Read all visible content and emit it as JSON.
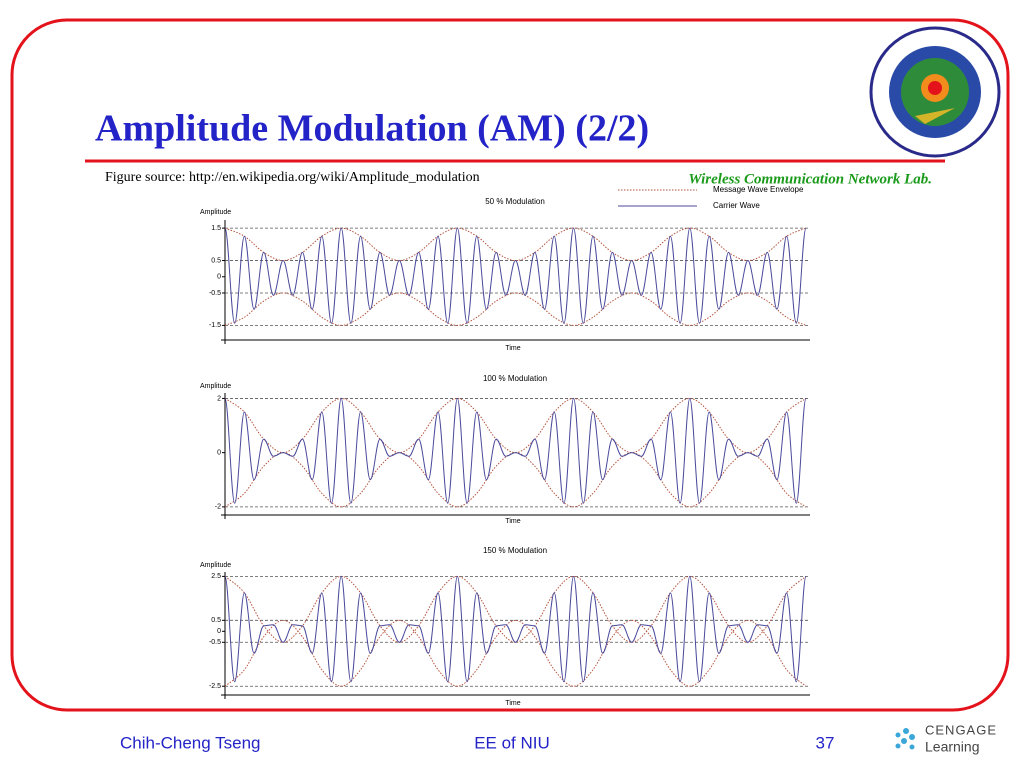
{
  "slide": {
    "title": "Amplitude Modulation (AM) (2/2)",
    "source": "Figure source: http://en.wikipedia.org/wiki/Amplitude_modulation",
    "lab": "Wireless Communication Network Lab.",
    "author": "Chih-Cheng Tseng",
    "dept": "EE of NIU",
    "page": "37",
    "brand": "CENGAGE",
    "brand_sub": "Learning"
  },
  "chart_data": [
    {
      "type": "line",
      "title": "50 % Modulation",
      "y_label": "Amplitude",
      "x_label": "Time",
      "ylim": [
        -1.95,
        1.75
      ],
      "yticks": [
        1.5,
        0.5,
        0,
        -0.5,
        -1.5
      ],
      "hlines": [
        1.5,
        0.5,
        -0.5,
        -1.5
      ],
      "legend": "top-right",
      "series": [
        {
          "name": "Message Wave Envelope",
          "color": "#b5523b",
          "values": [
            1.5,
            1.25,
            0.75,
            0.5,
            0.75,
            1.25,
            1.5,
            1.25,
            0.75,
            0.5,
            0.75,
            1.25,
            1.5,
            1.25,
            0.75,
            0.5,
            0.75,
            1.25,
            1.5,
            1.25,
            0.75,
            0.5,
            0.75,
            1.25,
            1.5,
            1.25,
            0.75,
            0.5,
            0.75,
            1.25,
            1.5
          ],
          "lower": [
            -1.5,
            -1.25,
            -0.75,
            -0.5,
            -0.75,
            -1.25,
            -1.5,
            -1.25,
            -0.75,
            -0.5,
            -0.75,
            -1.25,
            -1.5,
            -1.25,
            -0.75,
            -0.5,
            -0.75,
            -1.25,
            -1.5,
            -1.25,
            -0.75,
            -0.5,
            -0.75,
            -1.25,
            -1.5,
            -1.25,
            -0.75,
            -0.5,
            -0.75,
            -1.25,
            -1.5
          ]
        },
        {
          "name": "Carrier Wave",
          "color": "#4a4a9c",
          "values": [
            1.5,
            -1.433,
            1.25,
            -1,
            0.75,
            -0.567,
            0.5,
            -0.567,
            0.75,
            -1,
            1.25,
            -1.433,
            1.5,
            -1.433,
            1.25,
            -1,
            0.75,
            -0.567,
            0.5,
            -0.567,
            0.75,
            -1,
            1.25,
            -1.433,
            1.5,
            -1.433,
            1.25,
            -1,
            0.75,
            -0.567,
            0.5,
            -0.567,
            0.75,
            -1,
            1.25,
            -1.433,
            1.5,
            -1.433,
            1.25,
            -1,
            0.75,
            -0.567,
            0.5,
            -0.567,
            0.75,
            -1,
            1.25,
            -1.433,
            1.5,
            -1.433,
            1.25,
            -1,
            0.75,
            -0.567,
            0.5,
            -0.567,
            0.75,
            -1,
            1.25,
            -1.433,
            1.5
          ]
        }
      ]
    },
    {
      "type": "line",
      "title": "100 % Modulation",
      "y_label": "Amplitude",
      "x_label": "Time",
      "ylim": [
        -2.3,
        2.2
      ],
      "yticks": [
        2,
        0,
        -2
      ],
      "hlines": [
        2,
        -2
      ],
      "series": [
        {
          "name": "Message Wave Envelope",
          "color": "#b5523b",
          "values": [
            2,
            1.5,
            0.5,
            0,
            0.5,
            1.5,
            2,
            1.5,
            0.5,
            0,
            0.5,
            1.5,
            2,
            1.5,
            0.5,
            0,
            0.5,
            1.5,
            2,
            1.5,
            0.5,
            0,
            0.5,
            1.5,
            2,
            1.5,
            0.5,
            0,
            0.5,
            1.5,
            2
          ],
          "lower": [
            -2,
            -1.5,
            -0.5,
            0,
            -0.5,
            -1.5,
            -2,
            -1.5,
            -0.5,
            0,
            -0.5,
            -1.5,
            -2,
            -1.5,
            -0.5,
            0,
            -0.5,
            -1.5,
            -2,
            -1.5,
            -0.5,
            0,
            -0.5,
            -1.5,
            -2,
            -1.5,
            -0.5,
            0,
            -0.5,
            -1.5,
            -2
          ]
        },
        {
          "name": "Carrier Wave",
          "color": "#4a4a9c",
          "values": [
            2,
            -1.866,
            1.5,
            -1,
            0.5,
            -0.134,
            0,
            -0.134,
            0.5,
            -1,
            1.5,
            -1.866,
            2,
            -1.866,
            1.5,
            -1,
            0.5,
            -0.134,
            0,
            -0.134,
            0.5,
            -1,
            1.5,
            -1.866,
            2,
            -1.866,
            1.5,
            -1,
            0.5,
            -0.134,
            0,
            -0.134,
            0.5,
            -1,
            1.5,
            -1.866,
            2,
            -1.866,
            1.5,
            -1,
            0.5,
            -0.134,
            0,
            -0.134,
            0.5,
            -1,
            1.5,
            -1.866,
            2,
            -1.866,
            1.5,
            -1,
            0.5,
            -0.134,
            0,
            -0.134,
            0.5,
            -1,
            1.5,
            -1.866,
            2
          ]
        }
      ]
    },
    {
      "type": "line",
      "title": "150 % Modulation",
      "y_label": "Amplitude",
      "x_label": "Time",
      "ylim": [
        -2.9,
        2.7
      ],
      "yticks": [
        2.5,
        0.5,
        0,
        -0.5,
        -2.5
      ],
      "hlines": [
        2.5,
        0.5,
        -0.5,
        -2.5
      ],
      "series": [
        {
          "name": "Message Wave Envelope",
          "color": "#b5523b",
          "values": [
            2.5,
            1.75,
            0.25,
            -0.5,
            0.25,
            1.75,
            2.5,
            1.75,
            0.25,
            -0.5,
            0.25,
            1.75,
            2.5,
            1.75,
            0.25,
            -0.5,
            0.25,
            1.75,
            2.5,
            1.75,
            0.25,
            -0.5,
            0.25,
            1.75,
            2.5,
            1.75,
            0.25,
            -0.5,
            0.25,
            1.75,
            2.5
          ],
          "lower": [
            -2.5,
            -1.75,
            -0.25,
            0.5,
            -0.25,
            -1.75,
            -2.5,
            -1.75,
            -0.25,
            0.5,
            -0.25,
            -1.75,
            -2.5,
            -1.75,
            -0.25,
            0.5,
            -0.25,
            -1.75,
            -2.5,
            -1.75,
            -0.25,
            0.5,
            -0.25,
            -1.75,
            -2.5,
            -1.75,
            -0.25,
            0.5,
            -0.25,
            -1.75,
            -2.5
          ]
        },
        {
          "name": "Carrier Wave",
          "color": "#4a4a9c",
          "values": [
            2.5,
            -2.299,
            1.75,
            -1,
            0.25,
            0.299,
            -0.5,
            0.299,
            0.25,
            -1,
            1.75,
            -2.299,
            2.5,
            -2.299,
            1.75,
            -1,
            0.25,
            0.299,
            -0.5,
            0.299,
            0.25,
            -1,
            1.75,
            -2.299,
            2.5,
            -2.299,
            1.75,
            -1,
            0.25,
            0.299,
            -0.5,
            0.299,
            0.25,
            -1,
            1.75,
            -2.299,
            2.5,
            -2.299,
            1.75,
            -1,
            0.25,
            0.299,
            -0.5,
            0.299,
            0.25,
            -1,
            1.75,
            -2.299,
            2.5,
            -2.299,
            1.75,
            -1,
            0.25,
            0.299,
            -0.5,
            0.299,
            0.25,
            -1,
            1.75,
            -2.299,
            2.5
          ]
        }
      ]
    }
  ]
}
